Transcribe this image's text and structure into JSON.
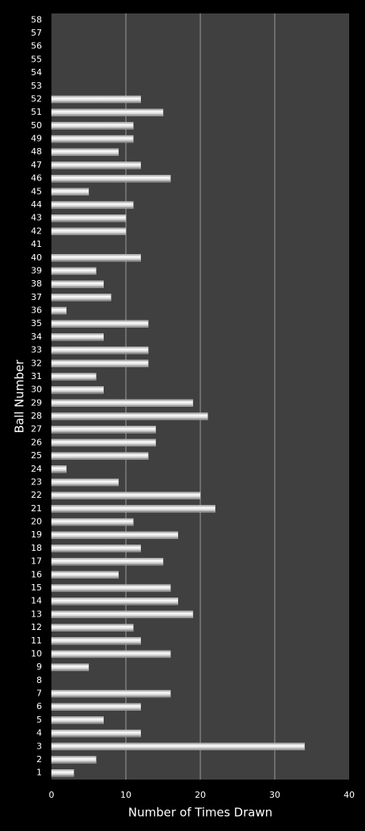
{
  "chart_data": {
    "type": "barh",
    "x_label": "Number of Times Drawn",
    "y_label": "Ball Number",
    "categories": [
      "1",
      "2",
      "3",
      "4",
      "5",
      "6",
      "7",
      "8",
      "9",
      "10",
      "11",
      "12",
      "13",
      "14",
      "15",
      "16",
      "17",
      "18",
      "19",
      "20",
      "21",
      "22",
      "23",
      "24",
      "25",
      "26",
      "27",
      "28",
      "29",
      "30",
      "31",
      "32",
      "33",
      "34",
      "35",
      "36",
      "37",
      "38",
      "39",
      "40",
      "41",
      "42",
      "43",
      "44",
      "45",
      "46",
      "47",
      "48",
      "49",
      "50",
      "51",
      "52",
      "53",
      "54",
      "55",
      "56",
      "57",
      "58"
    ],
    "values": [
      3,
      6,
      34,
      12,
      7,
      12,
      16,
      0,
      5,
      16,
      12,
      11,
      19,
      17,
      16,
      9,
      15,
      12,
      17,
      11,
      22,
      20,
      9,
      2,
      13,
      14,
      14,
      21,
      19,
      7,
      6,
      13,
      13,
      7,
      13,
      2,
      8,
      7,
      6,
      12,
      0,
      10,
      10,
      11,
      5,
      16,
      12,
      9,
      11,
      11,
      15,
      12,
      0,
      0,
      0,
      0,
      0,
      0
    ],
    "color": "#e8e8e8",
    "xlim": [
      0,
      40
    ],
    "xticks": [
      0,
      10,
      20,
      30,
      40
    ],
    "grid": true
  }
}
